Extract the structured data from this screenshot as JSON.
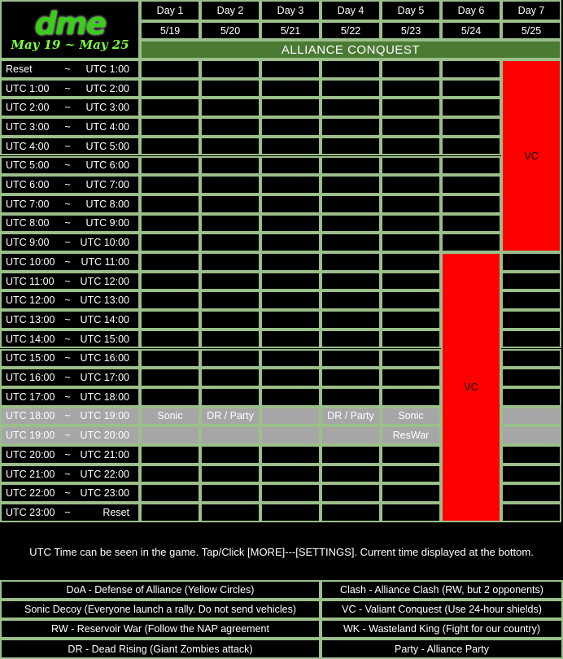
{
  "logo": {
    "brand": "dme",
    "date_range": "May 19 ~ May 25"
  },
  "days": [
    {
      "day": "Day 1",
      "date": "5/19"
    },
    {
      "day": "Day 2",
      "date": "5/20"
    },
    {
      "day": "Day 3",
      "date": "5/21"
    },
    {
      "day": "Day 4",
      "date": "5/22"
    },
    {
      "day": "Day 5",
      "date": "5/23"
    },
    {
      "day": "Day 6",
      "date": "5/24"
    },
    {
      "day": "Day 7",
      "date": "5/25"
    }
  ],
  "banner": "ALLIANCE CONQUEST",
  "time_separator": "~",
  "slots": [
    [
      "Reset",
      "UTC 1:00"
    ],
    [
      "UTC 1:00",
      "UTC 2:00"
    ],
    [
      "UTC 2:00",
      "UTC 3:00"
    ],
    [
      "UTC 3:00",
      "UTC 4:00"
    ],
    [
      "UTC 4:00",
      "UTC 5:00"
    ],
    [
      "UTC 5:00",
      "UTC 6:00"
    ],
    [
      "UTC 6:00",
      "UTC 7:00"
    ],
    [
      "UTC 7:00",
      "UTC 8:00"
    ],
    [
      "UTC 8:00",
      "UTC 9:00"
    ],
    [
      "UTC 9:00",
      "UTC 10:00"
    ],
    [
      "UTC 10:00",
      "UTC 11:00"
    ],
    [
      "UTC 11:00",
      "UTC 12:00"
    ],
    [
      "UTC 12:00",
      "UTC 13:00"
    ],
    [
      "UTC 13:00",
      "UTC 14:00"
    ],
    [
      "UTC 14:00",
      "UTC 15:00"
    ],
    [
      "UTC 15:00",
      "UTC 16:00"
    ],
    [
      "UTC 16:00",
      "UTC 17:00"
    ],
    [
      "UTC 17:00",
      "UTC 18:00"
    ],
    [
      "UTC 18:00",
      "UTC 19:00"
    ],
    [
      "UTC 19:00",
      "UTC 20:00"
    ],
    [
      "UTC 20:00",
      "UTC 21:00"
    ],
    [
      "UTC 21:00",
      "UTC 22:00"
    ],
    [
      "UTC 22:00",
      "UTC 23:00"
    ],
    [
      "UTC 23:00",
      "Reset"
    ]
  ],
  "highlight_slots": [
    18,
    19
  ],
  "events": [
    {
      "day": 0,
      "slot": 18,
      "span": 1,
      "label": "Sonic"
    },
    {
      "day": 1,
      "slot": 18,
      "span": 1,
      "label": "DR / Party"
    },
    {
      "day": 3,
      "slot": 18,
      "span": 1,
      "label": "DR / Party"
    },
    {
      "day": 4,
      "slot": 18,
      "span": 1,
      "label": "Sonic"
    },
    {
      "day": 4,
      "slot": 19,
      "span": 1,
      "label": "ResWar"
    },
    {
      "day": 6,
      "slot": 0,
      "span": 10,
      "label": "VC"
    },
    {
      "day": 5,
      "slot": 10,
      "span": 14,
      "label": "VC"
    }
  ],
  "colors": {
    "grid": "#9bbf8a",
    "banner": "#4a7a33",
    "highlight": "#a6a6a6",
    "vc": "#ff0000"
  },
  "note": "UTC Time can be seen in the game. Tap/Click [MORE]---[SETTINGS]. Current time displayed at the bottom.",
  "legend": [
    [
      "DoA - Defense of Alliance (Yellow Circles)",
      "Clash - Alliance Clash (RW, but 2 opponents)"
    ],
    [
      "Sonic Decoy (Everyone launch a rally. Do not send vehicles)",
      "VC - Valiant Conquest (Use 24-hour shields)"
    ],
    [
      "RW - Reservoir War (Follow the NAP agreement",
      "WK - Wasteland King (Fight for our country)"
    ],
    [
      "DR - Dead Rising (Giant Zombies attack)",
      "Party - Alliance Party"
    ]
  ]
}
